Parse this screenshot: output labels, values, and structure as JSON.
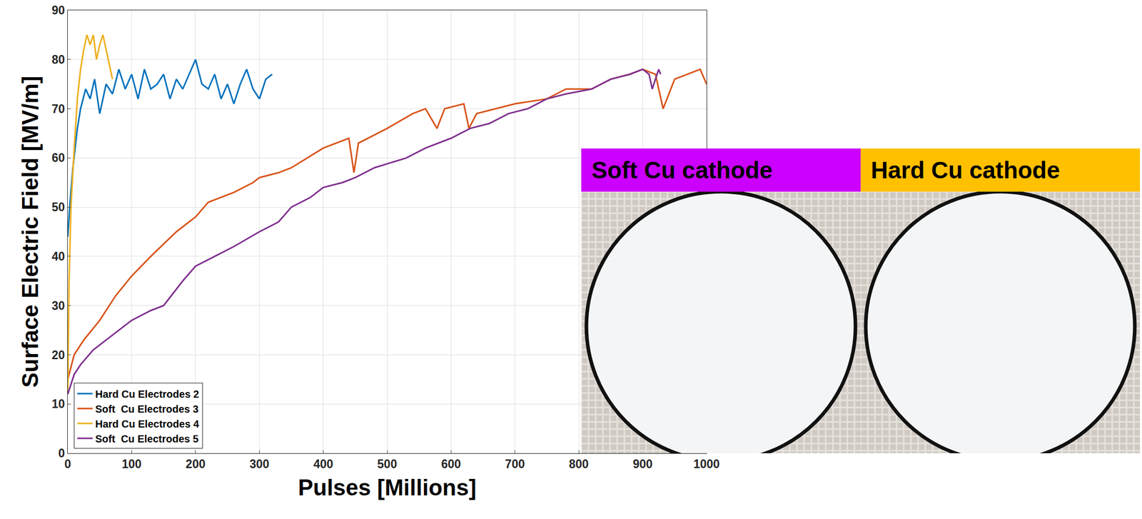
{
  "chart_data": {
    "type": "line",
    "x_label": "Pulses [Millions]",
    "y_label": "Surface Electric Field [MV/m]",
    "xlim": [
      0,
      1000
    ],
    "xticks": [
      0,
      100,
      200,
      300,
      400,
      500,
      600,
      700,
      800,
      900,
      1000
    ],
    "ylim": [
      0,
      90
    ],
    "yticks": [
      0,
      10,
      20,
      30,
      40,
      50,
      60,
      70,
      80,
      90
    ],
    "grid": true,
    "legend": "lower left",
    "series": [
      {
        "name": "Hard Cu Electrodes 2",
        "color": "#0072bd",
        "x": [
          0,
          3,
          8,
          15,
          20,
          28,
          35,
          42,
          50,
          60,
          70,
          80,
          90,
          100,
          110,
          120,
          130,
          140,
          150,
          160,
          170,
          180,
          190,
          200,
          210,
          220,
          230,
          240,
          250,
          260,
          270,
          280,
          290,
          300,
          310,
          320
        ],
        "values": [
          44,
          50,
          58,
          66,
          70,
          74,
          72,
          76,
          69,
          75,
          73,
          78,
          74,
          77,
          72,
          78,
          74,
          75,
          77,
          72,
          76,
          74,
          77,
          80,
          75,
          74,
          77,
          72,
          75,
          71,
          75,
          78,
          74,
          72,
          76,
          77
        ]
      },
      {
        "name": "Soft  Cu Electrodes 3",
        "color": "#d95319",
        "x": [
          0,
          10,
          25,
          50,
          75,
          100,
          130,
          170,
          200,
          220,
          260,
          290,
          300,
          330,
          350,
          400,
          440,
          448,
          455,
          500,
          540,
          560,
          578,
          590,
          620,
          628,
          640,
          700,
          750,
          780,
          820,
          850,
          880,
          900,
          920,
          932,
          950,
          970,
          990,
          1000
        ],
        "values": [
          15,
          20,
          23,
          27,
          32,
          36,
          40,
          45,
          48,
          51,
          53,
          55,
          56,
          57,
          58,
          62,
          64,
          57,
          63,
          66,
          69,
          70,
          66,
          70,
          71,
          66,
          69,
          71,
          72,
          74,
          74,
          76,
          77,
          78,
          77,
          70,
          76,
          77,
          78,
          75
        ]
      },
      {
        "name": "Hard Cu Electrodes 4",
        "color": "#edb120",
        "x": [
          0,
          2,
          5,
          10,
          15,
          20,
          25,
          30,
          35,
          40,
          45,
          50,
          55,
          60,
          65,
          70
        ],
        "values": [
          12,
          35,
          50,
          62,
          72,
          78,
          82,
          85,
          83,
          85,
          80,
          83,
          85,
          82,
          79,
          76
        ]
      },
      {
        "name": "Soft  Cu Electrodes 5",
        "color": "#7e2f8e",
        "x": [
          0,
          10,
          20,
          40,
          70,
          100,
          130,
          150,
          180,
          200,
          230,
          260,
          300,
          330,
          350,
          380,
          400,
          430,
          450,
          480,
          530,
          560,
          600,
          630,
          660,
          690,
          720,
          750,
          780,
          820,
          850,
          880,
          900,
          910,
          915,
          925,
          928
        ],
        "values": [
          12,
          16,
          18,
          21,
          24,
          27,
          29,
          30,
          35,
          38,
          40,
          42,
          45,
          47,
          50,
          52,
          54,
          55,
          56,
          58,
          60,
          62,
          64,
          66,
          67,
          69,
          70,
          72,
          73,
          74,
          76,
          77,
          78,
          77,
          74,
          78,
          77
        ]
      }
    ],
    "insets": [
      {
        "label": "Soft Cu cathode",
        "color": "#cc00ff"
      },
      {
        "label": "Hard Cu cathode",
        "color": "#ffc000"
      }
    ]
  }
}
